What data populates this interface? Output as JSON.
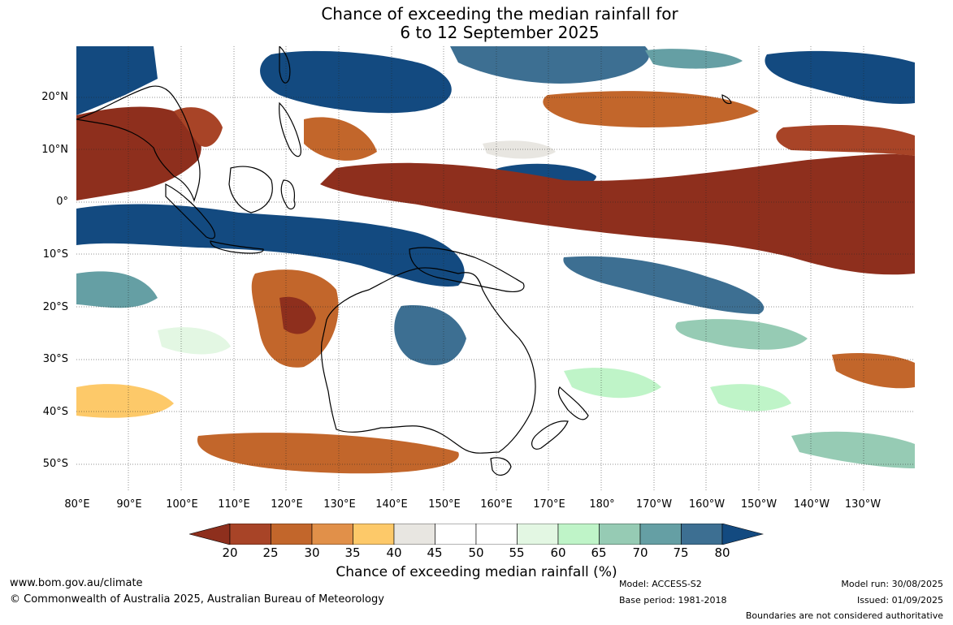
{
  "title_line1": "Chance of exceeding the median rainfall for",
  "title_line2": "6 to 12 September 2025",
  "map": {
    "lon_labels": [
      "80°E",
      "90°E",
      "100°E",
      "110°E",
      "120°E",
      "130°E",
      "140°E",
      "150°E",
      "160°E",
      "170°E",
      "180°",
      "170°W",
      "160°W",
      "150°W",
      "140°W",
      "130°W"
    ],
    "lat_labels": [
      "20°N",
      "10°N",
      "0°",
      "10°S",
      "20°S",
      "30°S",
      "40°S",
      "50°S"
    ],
    "lon_range": [
      "80°E",
      "121°W"
    ],
    "lat_range": [
      "55°S",
      "30°N"
    ],
    "gridlines": true,
    "colors": {
      "dry_strong": "#8e2f1d",
      "dry": "#c2662b",
      "dry_weak": "#f5c36a",
      "neutral": "#e8e6e1",
      "wet_weak": "#bff0c4",
      "wet": "#5f9ea0",
      "wet_strong": "#134a80",
      "land_outline": "#000000"
    }
  },
  "legend": {
    "title": "Chance of exceeding median rainfall (%)",
    "labels": [
      "20",
      "25",
      "30",
      "35",
      "40",
      "45",
      "50",
      "55",
      "60",
      "65",
      "70",
      "75",
      "80"
    ],
    "colors": [
      "#8e2f1d",
      "#a84427",
      "#c2662b",
      "#e19049",
      "#fdc969",
      "#e8e6e1",
      "#ffffff",
      "#ffffff",
      "#e3f7e3",
      "#bff4c8",
      "#96cbb4",
      "#659fa4",
      "#3d6f92",
      "#134a80"
    ]
  },
  "footer": {
    "website": "www.bom.gov.au/climate",
    "copyright": "© Commonwealth of Australia 2025, Australian Bureau of Meteorology",
    "model": "Model: ACCESS-S2",
    "base_period": "Base period: 1981-2018",
    "model_run": "Model run: 30/08/2025",
    "issued": "Issued: 01/09/2025",
    "disclaimer": "Boundaries are not considered authoritative"
  }
}
